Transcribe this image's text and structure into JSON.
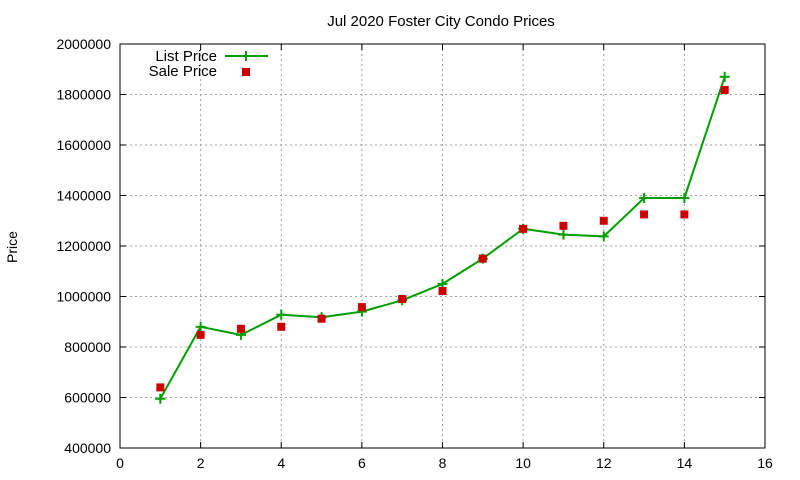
{
  "chart_data": {
    "type": "line",
    "title": "Jul 2020 Foster City Condo Prices",
    "xlabel": "",
    "ylabel": "Price",
    "xlim": [
      0,
      16
    ],
    "ylim": [
      400000,
      2000000
    ],
    "xticks": [
      "0",
      "2",
      "4",
      "6",
      "8",
      "10",
      "12",
      "14",
      "16"
    ],
    "yticks": [
      "400000",
      "600000",
      "800000",
      "1000000",
      "1200000",
      "1400000",
      "1600000",
      "1800000",
      "2000000"
    ],
    "grid": true,
    "legend_position": "top-left",
    "series": [
      {
        "name": "List Price",
        "style": "lines+points",
        "marker": "plus",
        "color": "#009e00",
        "x": [
          1,
          2,
          3,
          4,
          5,
          6,
          7,
          8,
          9,
          10,
          11,
          12,
          13,
          14,
          15
        ],
        "y": [
          595000,
          880000,
          848000,
          928000,
          918000,
          940000,
          985000,
          1050000,
          1150000,
          1268000,
          1245000,
          1238000,
          1390000,
          1390000,
          1870000
        ]
      },
      {
        "name": "Sale Price",
        "style": "points",
        "marker": "square",
        "color": "#cc0000",
        "x": [
          1,
          2,
          3,
          4,
          5,
          6,
          7,
          8,
          9,
          10,
          11,
          12,
          13,
          14,
          15
        ],
        "y": [
          640000,
          848000,
          872000,
          880000,
          912000,
          958000,
          990000,
          1022000,
          1150000,
          1268000,
          1280000,
          1300000,
          1325000,
          1325000,
          1818000
        ]
      }
    ]
  }
}
